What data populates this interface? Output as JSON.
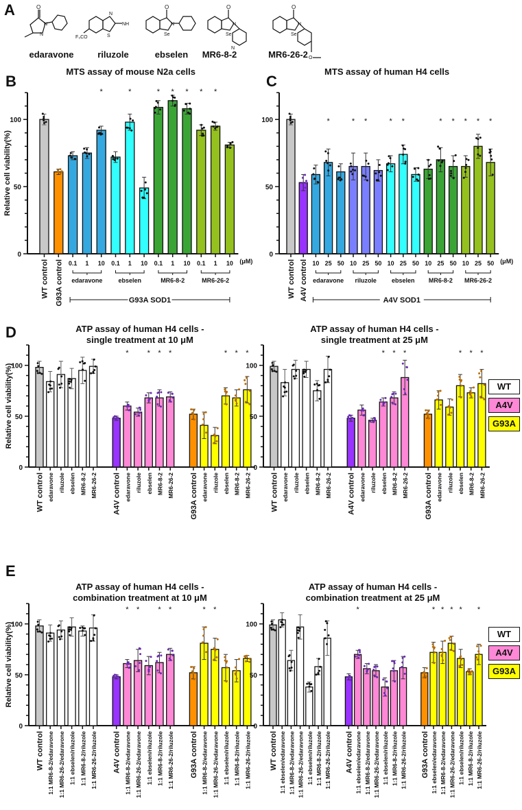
{
  "panel_letters": {
    "A": "A",
    "B": "B",
    "C": "C",
    "D": "D",
    "E": "E"
  },
  "compounds": [
    {
      "name": "edaravone"
    },
    {
      "name": "riluzole"
    },
    {
      "name": "ebselen"
    },
    {
      "name": "MR6-8-2"
    },
    {
      "name": "MR6-26-2"
    }
  ],
  "legend": [
    {
      "label": "WT",
      "color": "#ffffff"
    },
    {
      "label": "A4V",
      "color": "#ff88d6"
    },
    {
      "label": "G93A",
      "color": "#ffff00"
    }
  ],
  "chart_data": [
    {
      "id": "B",
      "type": "bar",
      "title": "MTS assay of mouse N2a cells",
      "ylabel": "Relative cell viability(%)",
      "ylim": [
        0,
        120
      ],
      "yticks": [
        0,
        50,
        100
      ],
      "unit_label": "(μM)",
      "categories": [
        "WT control",
        "G93A control",
        "0.1",
        "1",
        "10",
        "0.1",
        "1",
        "10",
        "0.1",
        "1",
        "10",
        "0.1",
        "1",
        "10"
      ],
      "values": [
        100,
        61,
        73,
        75,
        92,
        72,
        98,
        49,
        109,
        114,
        108,
        92,
        95,
        81
      ],
      "errors": [
        4,
        2,
        3,
        4,
        3,
        4,
        6,
        8,
        5,
        4,
        4,
        4,
        3,
        2
      ],
      "colors": [
        "#c8c8c8",
        "#ff9100",
        "#35a8e0",
        "#35a8e0",
        "#35a8e0",
        "#33ffff",
        "#33ffff",
        "#33ffff",
        "#3aa535",
        "#3aa535",
        "#3aa535",
        "#95c11f",
        "#95c11f",
        "#95c11f"
      ],
      "significant": [
        false,
        false,
        false,
        false,
        true,
        false,
        true,
        false,
        true,
        true,
        true,
        true,
        true,
        false
      ],
      "groups": [
        {
          "label": "edaravone",
          "from": 2,
          "to": 4
        },
        {
          "label": "ebselen",
          "from": 5,
          "to": 7
        },
        {
          "label": "MR6-8-2",
          "from": 8,
          "to": 10
        },
        {
          "label": "MR6-26-2",
          "from": 11,
          "to": 13
        }
      ],
      "span_label": {
        "label": "G93A SOD1",
        "from": 2,
        "to": 13
      },
      "rotated_labels": [
        "WT control",
        "G93A control"
      ]
    },
    {
      "id": "C",
      "type": "bar",
      "title": "MTS assay of human H4 cells",
      "ylabel": "",
      "ylim": [
        0,
        120
      ],
      "yticks": [
        0,
        50,
        100
      ],
      "unit_label": "(μM)",
      "categories": [
        "WT control",
        "A4V control",
        "10",
        "25",
        "50",
        "10",
        "25",
        "50",
        "10",
        "25",
        "50",
        "10",
        "25",
        "50",
        "10",
        "25",
        "50"
      ],
      "values": [
        100,
        53,
        59,
        68,
        61,
        65,
        65,
        62,
        67,
        74,
        59,
        63,
        70,
        65,
        65,
        80,
        68
      ],
      "errors": [
        4,
        6,
        7,
        10,
        6,
        10,
        10,
        8,
        6,
        7,
        5,
        7,
        9,
        8,
        8,
        9,
        10
      ],
      "colors": [
        "#c8c8c8",
        "#9933ff",
        "#35a8e0",
        "#35a8e0",
        "#35a8e0",
        "#7a7fff",
        "#7a7fff",
        "#7a7fff",
        "#33ffff",
        "#33ffff",
        "#33ffff",
        "#3aa535",
        "#3aa535",
        "#3aa535",
        "#95c11f",
        "#95c11f",
        "#95c11f"
      ],
      "significant": [
        false,
        false,
        false,
        true,
        false,
        true,
        true,
        false,
        true,
        true,
        false,
        false,
        true,
        true,
        true,
        true,
        true
      ],
      "groups": [
        {
          "label": "edaravone",
          "from": 2,
          "to": 4
        },
        {
          "label": "riluzole",
          "from": 5,
          "to": 7
        },
        {
          "label": "ebselen",
          "from": 8,
          "to": 10
        },
        {
          "label": "MR6-8-2",
          "from": 11,
          "to": 13
        },
        {
          "label": "MR6-26-2",
          "from": 14,
          "to": 16
        }
      ],
      "span_label": {
        "label": "A4V SOD1",
        "from": 2,
        "to": 16
      },
      "rotated_labels": [
        "WT control",
        "A4V control"
      ]
    },
    {
      "id": "D1",
      "type": "bar",
      "title": "ATP assay of human H4 cells -",
      "subtitle": "single treatment at 10 μM",
      "ylabel": "Relative cell viability(%)",
      "ylim": [
        0,
        120
      ],
      "yticks": [
        0,
        50,
        100
      ],
      "categories": [
        "WT control",
        "edaravone",
        "riluzole",
        "ebselen",
        "MR6-8-2",
        "MR6-26-2",
        "A4V control",
        "edaravone",
        "riluzole",
        "ebselen",
        "MR6-8-2",
        "MR6-26-2",
        "G93A control",
        "edaravone",
        "riluzole",
        "ebselen",
        "MR6-8-2",
        "MR6-26-2"
      ],
      "values": [
        98,
        84,
        91,
        87,
        95,
        99,
        48,
        60,
        54,
        68,
        68,
        69,
        52,
        41,
        31,
        70,
        68,
        76
      ],
      "errors": [
        6,
        10,
        13,
        10,
        13,
        7,
        2,
        4,
        4,
        5,
        8,
        5,
        5,
        13,
        8,
        8,
        8,
        13
      ],
      "colors": [
        "#c8c8c8",
        "#ffffff",
        "#ffffff",
        "#ffffff",
        "#ffffff",
        "#ffffff",
        "#9933ff",
        "#ff88d6",
        "#ff88d6",
        "#ff88d6",
        "#ff88d6",
        "#ff88d6",
        "#ff9100",
        "#ffff00",
        "#ffff00",
        "#ffff00",
        "#ffff00",
        "#ffff00"
      ],
      "significant": [
        false,
        false,
        false,
        false,
        false,
        false,
        false,
        true,
        false,
        true,
        true,
        true,
        false,
        false,
        false,
        true,
        true,
        true
      ],
      "gap_after": [
        5,
        11
      ]
    },
    {
      "id": "D2",
      "type": "bar",
      "title": "ATP assay of human H4 cells -",
      "subtitle": "single treatment at 25 μM",
      "ylabel": "",
      "ylim": [
        0,
        120
      ],
      "yticks": [
        0,
        50,
        100
      ],
      "categories": [
        "WT control",
        "edaravone",
        "riluzole",
        "ebselen",
        "MR6-8-2",
        "MR6-26-2",
        "A4V control",
        "edaravone",
        "riluzole",
        "ebselen",
        "MR6-8-2",
        "MR6-26-2",
        "G93A control",
        "edaravone",
        "riluzole",
        "ebselen",
        "MR6-8-2",
        "MR6-26-2"
      ],
      "values": [
        99,
        83,
        96,
        96,
        75,
        96,
        48,
        56,
        46,
        64,
        68,
        88,
        52,
        66,
        59,
        80,
        73,
        82
      ],
      "errors": [
        5,
        13,
        9,
        8,
        10,
        13,
        3,
        5,
        2,
        4,
        6,
        17,
        4,
        9,
        8,
        11,
        5,
        14
      ],
      "colors": [
        "#c8c8c8",
        "#ffffff",
        "#ffffff",
        "#ffffff",
        "#ffffff",
        "#ffffff",
        "#9933ff",
        "#ff88d6",
        "#ff88d6",
        "#ff88d6",
        "#ff88d6",
        "#ff88d6",
        "#ff9100",
        "#ffff00",
        "#ffff00",
        "#ffff00",
        "#ffff00",
        "#ffff00"
      ],
      "significant": [
        false,
        false,
        false,
        false,
        false,
        false,
        false,
        false,
        false,
        true,
        true,
        true,
        false,
        false,
        false,
        true,
        true,
        true
      ],
      "gap_after": [
        5,
        11
      ]
    },
    {
      "id": "E1",
      "type": "bar",
      "title": "ATP assay of human H4 cells -",
      "subtitle": "combination treatment at 10 μM",
      "ylabel": "Relative cell viability(%)",
      "ylim": [
        0,
        120
      ],
      "yticks": [
        0,
        50,
        100
      ],
      "categories": [
        "WT control",
        "1:1 MR6-8-2/edaravone",
        "1:1 MR6-26-2/edaravone",
        "1:1 ebselen/riluzole",
        "1:1 MR6-8-2/riluzole",
        "1:1 MR6-26-2/riluzole",
        "A4V control",
        "1:1 MR6-8-2/edaravone",
        "1:1 MR6-26-2/edaravone",
        "1:1 ebselen/riluzole",
        "1:1 MR6-8-2/riluzole",
        "1:1 MR6-26-2/riluzole",
        "G93A control",
        "1:1 MR6-8-2/edaravone",
        "1:1 MR6-26-2/edaravone",
        "1:1 ebselen/riluzole",
        "1:1 MR6-8-2/riluzole",
        "1:1 MR6-26-2/riluzole"
      ],
      "values": [
        98,
        91,
        94,
        97,
        93,
        96,
        48,
        61,
        64,
        59,
        62,
        70,
        52,
        81,
        75,
        57,
        54,
        66
      ],
      "errors": [
        6,
        8,
        9,
        9,
        5,
        13,
        2,
        4,
        11,
        9,
        10,
        6,
        6,
        16,
        11,
        13,
        11,
        3
      ],
      "colors": [
        "#c8c8c8",
        "#ffffff",
        "#ffffff",
        "#ffffff",
        "#ffffff",
        "#ffffff",
        "#9933ff",
        "#ff88d6",
        "#ff88d6",
        "#ff88d6",
        "#ff88d6",
        "#ff88d6",
        "#ff9100",
        "#ffff00",
        "#ffff00",
        "#ffff00",
        "#ffff00",
        "#ffff00"
      ],
      "significant": [
        false,
        false,
        false,
        false,
        false,
        false,
        false,
        true,
        true,
        false,
        true,
        true,
        false,
        true,
        true,
        false,
        false,
        false
      ],
      "gap_after": [
        5,
        11
      ]
    },
    {
      "id": "E2",
      "type": "bar",
      "title": "ATP assay of human H4 cells -",
      "subtitle": "combination treatment at 25 μM",
      "ylabel": "",
      "ylim": [
        0,
        120
      ],
      "yticks": [
        0,
        50,
        100
      ],
      "categories": [
        "WT control",
        "1:1 ebselen/edaravone",
        "1:1 MR6-8-2/edaravone",
        "1:1 MR6-26-2/edaravone",
        "1:1 ebselen/riluzole",
        "1:1 MR6-8-2/riluzole",
        "1:1 MR6-26-2/riluzole",
        "A4V control",
        "1:1 ebselen/edaravone",
        "1:1 MR6-8-2/edaravone",
        "1:1 MR6-26-2/edaravone",
        "1:1 ebselen/riluzole",
        "1:1 MR6-8-2/riluzole",
        "1:1 MR6-26-2/riluzole",
        "G93A control",
        "1:1 ebselen/edaravone",
        "1:1 MR6-8-2/edaravone",
        "1:1 MR6-26-2/edaravone",
        "1:1 ebselen/riluzole",
        "1:1 MR6-8-2/riluzole",
        "1:1 MR6-26-2/riluzole"
      ],
      "values": [
        99,
        104,
        64,
        97,
        38,
        58,
        86,
        48,
        70,
        56,
        54,
        38,
        54,
        57,
        52,
        72,
        72,
        81,
        66,
        53,
        70
      ],
      "errors": [
        5,
        7,
        10,
        12,
        5,
        8,
        17,
        3,
        4,
        5,
        6,
        9,
        10,
        11,
        5,
        10,
        11,
        7,
        9,
        3,
        10
      ],
      "colors": [
        "#c8c8c8",
        "#ffffff",
        "#ffffff",
        "#ffffff",
        "#ffffff",
        "#ffffff",
        "#ffffff",
        "#9933ff",
        "#ff88d6",
        "#ff88d6",
        "#ff88d6",
        "#ff88d6",
        "#ff88d6",
        "#ff88d6",
        "#ff9100",
        "#ffff00",
        "#ffff00",
        "#ffff00",
        "#ffff00",
        "#ffff00",
        "#ffff00"
      ],
      "significant": [
        false,
        false,
        false,
        false,
        false,
        false,
        false,
        false,
        true,
        false,
        false,
        false,
        false,
        false,
        false,
        true,
        true,
        true,
        true,
        false,
        true
      ],
      "gap_after": [
        6,
        13
      ]
    }
  ]
}
